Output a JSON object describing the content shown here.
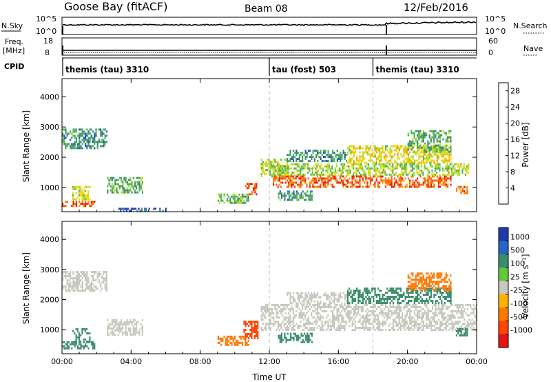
{
  "header": {
    "station": "Goose Bay (fitACF)",
    "beam": "Beam 08",
    "date": "12/Feb/2016"
  },
  "status_panels": {
    "nsky_label": "N.Sky",
    "nsky_ticks": [
      "10^5",
      "10^0"
    ],
    "nsearch_label": "N.Search",
    "nsearch_ticks": [
      "10^5",
      "10^0"
    ],
    "freq_label": "Freq.",
    "freq_unit": "[MHz]",
    "freq_ticks": [
      "18",
      "8"
    ],
    "nave_label": "Nave",
    "nave_ticks": [
      "60",
      "0"
    ],
    "cpid_label": "CPID",
    "cpid_segments": [
      {
        "label": "themis (tau) 3310",
        "start_hour": 0
      },
      {
        "label": "tau (fost) 503",
        "start_hour": 12
      },
      {
        "label": "themis (tau) 3310",
        "start_hour": 18
      }
    ]
  },
  "colors": {
    "power_scale": [
      "#1a1aff",
      "#2850b4",
      "#3c8c78",
      "#50b450",
      "#b4dc28",
      "#ffd200",
      "#ff9600",
      "#ff6400",
      "#e61e00"
    ],
    "velocity_scale": [
      "#1e3caa",
      "#2864c8",
      "#3c8c6e",
      "#64c83c",
      "#c8c8be",
      "#ffb400",
      "#ff7800",
      "#ff4600",
      "#e61414"
    ],
    "ground_scatter": "#c8c8be"
  },
  "chart_data": [
    {
      "type": "heatmap",
      "name": "power",
      "xlabel": "",
      "ylabel": "Slant Range [km]",
      "xlim": [
        0,
        24
      ],
      "ylim": [
        200,
        4600
      ],
      "x_tick_hours": [
        0,
        4,
        8,
        12,
        16,
        20,
        24
      ],
      "y_ticks": [
        1000,
        2000,
        3000,
        4000
      ],
      "colorbar": {
        "label": "Power [dB]",
        "ticks": [
          "4",
          "8",
          "12",
          "16",
          "20",
          "24",
          "28"
        ],
        "range": [
          0,
          30
        ]
      },
      "regions": [
        {
          "x": [
            0.0,
            1.9
          ],
          "y": [
            380,
            560
          ],
          "value": 27
        },
        {
          "x": [
            0.6,
            1.6
          ],
          "y": [
            600,
            1050
          ],
          "value": 16
        },
        {
          "x": [
            0.0,
            2.6
          ],
          "y": [
            2300,
            2950
          ],
          "value": 9
        },
        {
          "x": [
            2.6,
            4.7
          ],
          "y": [
            850,
            1350
          ],
          "value": 11
        },
        {
          "x": [
            3.0,
            6.0
          ],
          "y": [
            250,
            330
          ],
          "value": 6
        },
        {
          "x": [
            9.0,
            10.8
          ],
          "y": [
            500,
            800
          ],
          "value": 12
        },
        {
          "x": [
            10.6,
            11.3
          ],
          "y": [
            800,
            1150
          ],
          "value": 26
        },
        {
          "x": [
            11.5,
            13.0
          ],
          "y": [
            1400,
            1950
          ],
          "value": 16
        },
        {
          "x": [
            12.2,
            22.5
          ],
          "y": [
            1000,
            1400
          ],
          "value": 25
        },
        {
          "x": [
            12.0,
            23.5
          ],
          "y": [
            1450,
            1800
          ],
          "value": 14
        },
        {
          "x": [
            12.5,
            14.5
          ],
          "y": [
            600,
            900
          ],
          "value": 10
        },
        {
          "x": [
            13.0,
            16.5
          ],
          "y": [
            1900,
            2250
          ],
          "value": 9
        },
        {
          "x": [
            16.5,
            22.5
          ],
          "y": [
            1800,
            2400
          ],
          "value": 17
        },
        {
          "x": [
            20.0,
            22.5
          ],
          "y": [
            2200,
            2900
          ],
          "value": 11
        },
        {
          "x": [
            22.8,
            23.5
          ],
          "y": [
            800,
            1050
          ],
          "value": 25
        }
      ]
    },
    {
      "type": "heatmap",
      "name": "velocity",
      "xlabel": "Time UT",
      "ylabel": "Slant Range [km]",
      "xlim": [
        0,
        24
      ],
      "ylim": [
        200,
        4600
      ],
      "x_tick_labels": [
        "00:00",
        "04:00",
        "08:00",
        "12:00",
        "16:00",
        "20:00",
        "00:00"
      ],
      "x_tick_hours": [
        0,
        4,
        8,
        12,
        16,
        20,
        24
      ],
      "y_ticks": [
        1000,
        2000,
        3000,
        4000
      ],
      "colorbar": {
        "label": "Velocity [m s⁻¹]",
        "ticks": [
          "1000",
          "500",
          "100",
          "25",
          "-25",
          "-100",
          "-500",
          "-1000"
        ]
      },
      "regions": [
        {
          "x": [
            0.0,
            1.9
          ],
          "y": [
            380,
            620
          ],
          "value": 120,
          "vtype": "velocity"
        },
        {
          "x": [
            0.6,
            1.6
          ],
          "y": [
            620,
            1050
          ],
          "value": 150,
          "vtype": "velocity"
        },
        {
          "x": [
            0.0,
            2.6
          ],
          "y": [
            2300,
            2950
          ],
          "value": 0,
          "vtype": "ground"
        },
        {
          "x": [
            2.6,
            4.7
          ],
          "y": [
            850,
            1350
          ],
          "value": 0,
          "vtype": "ground"
        },
        {
          "x": [
            9.0,
            10.8
          ],
          "y": [
            500,
            800
          ],
          "value": -300,
          "vtype": "velocity"
        },
        {
          "x": [
            10.5,
            11.3
          ],
          "y": [
            700,
            1300
          ],
          "value": -600,
          "vtype": "velocity"
        },
        {
          "x": [
            11.5,
            24.0
          ],
          "y": [
            1000,
            1850
          ],
          "value": 0,
          "vtype": "ground"
        },
        {
          "x": [
            12.5,
            14.5
          ],
          "y": [
            600,
            900
          ],
          "value": 200,
          "vtype": "velocity"
        },
        {
          "x": [
            13.0,
            16.5
          ],
          "y": [
            1900,
            2250
          ],
          "value": 0,
          "vtype": "ground"
        },
        {
          "x": [
            16.5,
            22.5
          ],
          "y": [
            1850,
            2400
          ],
          "value": 200,
          "vtype": "velocity"
        },
        {
          "x": [
            20.0,
            22.5
          ],
          "y": [
            2300,
            2900
          ],
          "value": -200,
          "vtype": "velocity"
        },
        {
          "x": [
            22.8,
            23.5
          ],
          "y": [
            800,
            1050
          ],
          "value": 200,
          "vtype": "velocity"
        }
      ]
    }
  ]
}
